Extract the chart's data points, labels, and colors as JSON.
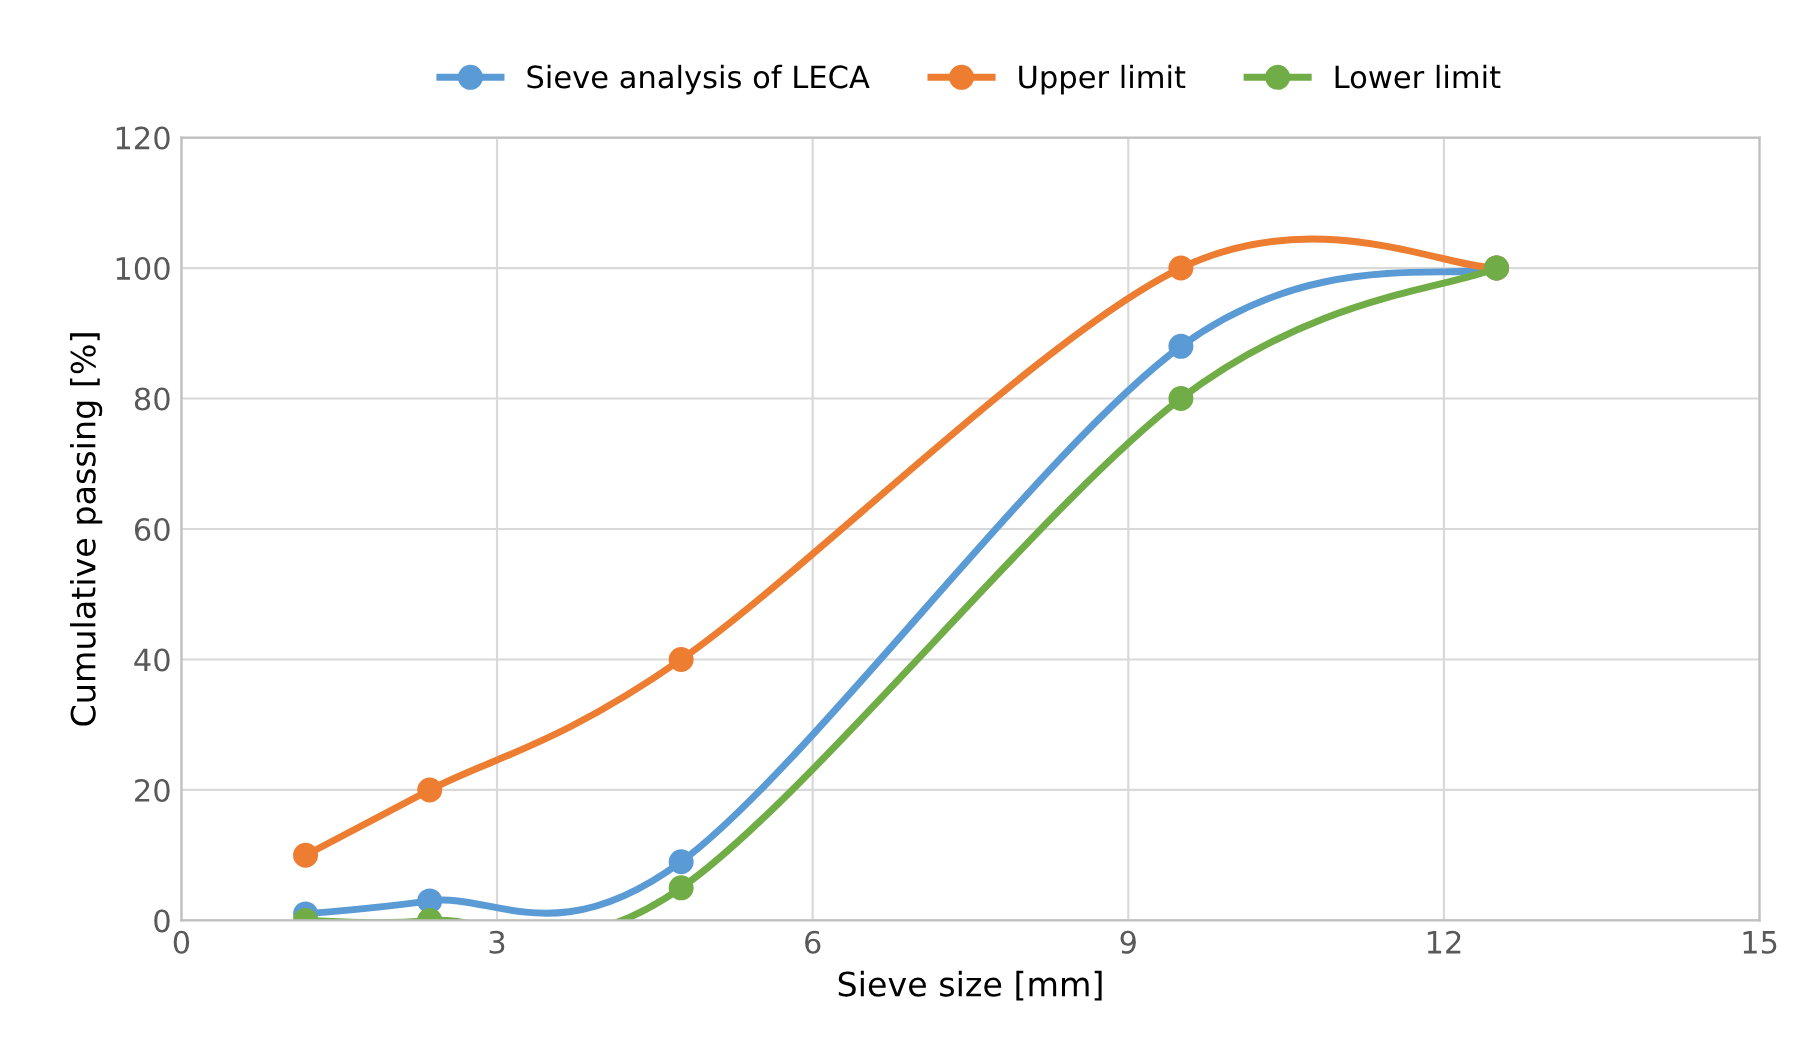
{
  "chart_data": {
    "type": "line",
    "xlabel": "Sieve size [mm]",
    "ylabel": "Cumulative passing [%]",
    "x": [
      1.18,
      2.36,
      4.75,
      9.5,
      12.5
    ],
    "series": [
      {
        "name": "Sieve analysis of LECA",
        "color": "#5b9bd5",
        "values": [
          1,
          3,
          9,
          88,
          100
        ]
      },
      {
        "name": "Upper limit",
        "color": "#ed7d31",
        "values": [
          10,
          20,
          40,
          100,
          100
        ]
      },
      {
        "name": "Lower limit",
        "color": "#70ad47",
        "values": [
          0,
          0,
          5,
          80,
          100
        ]
      }
    ],
    "xlim": [
      0,
      15
    ],
    "xticks": [
      0,
      3,
      6,
      9,
      12,
      15
    ],
    "ylim": [
      0,
      120
    ],
    "yticks": [
      0,
      20,
      40,
      60,
      80,
      100,
      120
    ],
    "grid": true,
    "legend": "top",
    "marker": "circle",
    "line_style": "solid"
  }
}
